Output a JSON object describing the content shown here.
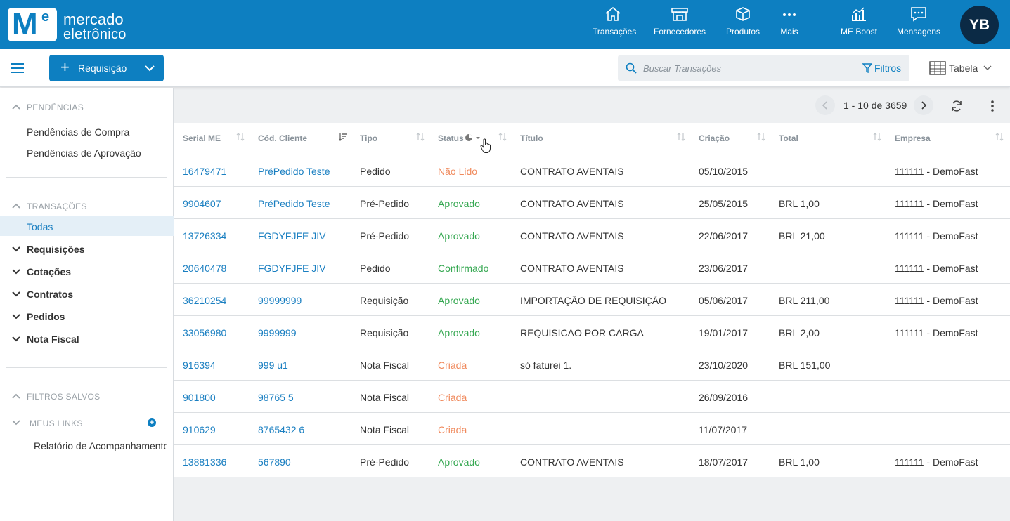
{
  "brand": {
    "mark_m": "M",
    "mark_e": "e",
    "line1": "mercado",
    "line2": "eletrônico"
  },
  "nav": [
    {
      "label": "Transações",
      "icon": "home-icon",
      "active": true
    },
    {
      "label": "Fornecedores",
      "icon": "store-icon"
    },
    {
      "label": "Produtos",
      "icon": "box-icon"
    },
    {
      "label": "Mais",
      "icon": "more-icon"
    },
    {
      "label": "ME Boost",
      "icon": "chart-icon"
    },
    {
      "label": "Mensagens",
      "icon": "message-icon"
    }
  ],
  "user": {
    "initials": "YB"
  },
  "toolbar": {
    "new_button": "Requisição",
    "search_placeholder": "Buscar Transações",
    "filters": "Filtros",
    "view": "Tabela"
  },
  "sidebar": {
    "pendencias_title": "PENDÊNCIAS",
    "pendencias": [
      "Pendências de Compra",
      "Pendências de Aprovação"
    ],
    "transacoes_title": "TRANSAÇÕES",
    "todas": "Todas",
    "groups": [
      "Requisições",
      "Cotações",
      "Contratos",
      "Pedidos",
      "Nota Fiscal"
    ],
    "filtros_title": "FILTROS SALVOS",
    "meus_links_title": "MEUS LINKS",
    "links": [
      "Relatório de Acompanhamento"
    ]
  },
  "pager": {
    "range": "1 - 10 de 3659"
  },
  "table": {
    "headers": [
      "Serial ME",
      "Cód. Cliente",
      "Tipo",
      "Status",
      "Título",
      "Criação",
      "Total",
      "Empresa"
    ],
    "rows": [
      {
        "serial": "16479471",
        "cod": "PréPedido Teste",
        "tipo": "Pedido",
        "status": "Não Lido",
        "status_color": "#f08a5d",
        "titulo": "CONTRATO AVENTAIS",
        "criacao": "05/10/2015",
        "total": "",
        "empresa": "111111 - DemoFast"
      },
      {
        "serial": "9904607",
        "cod": "PréPedido Teste",
        "tipo": "Pré-Pedido",
        "status": "Aprovado",
        "status_color": "#36a852",
        "titulo": "CONTRATO AVENTAIS",
        "criacao": "25/05/2015",
        "total": "BRL 1,00",
        "empresa": "111111 - DemoFast"
      },
      {
        "serial": "13726334",
        "cod": "FGDYFJFE JIV",
        "tipo": "Pré-Pedido",
        "status": "Aprovado",
        "status_color": "#36a852",
        "titulo": "CONTRATO AVENTAIS",
        "criacao": "22/06/2017",
        "total": "BRL 21,00",
        "empresa": "111111 - DemoFast"
      },
      {
        "serial": "20640478",
        "cod": "FGDYFJFE JIV",
        "tipo": "Pedido",
        "status": "Confirmado",
        "status_color": "#36a852",
        "titulo": "CONTRATO AVENTAIS",
        "criacao": "23/06/2017",
        "total": "",
        "empresa": "111111 - DemoFast"
      },
      {
        "serial": "36210254",
        "cod": "99999999",
        "tipo": "Requisição",
        "status": "Aprovado",
        "status_color": "#36a852",
        "titulo": "IMPORTAÇÃO DE REQUISIÇÃO",
        "criacao": "05/06/2017",
        "total": "BRL 211,00",
        "empresa": "111111 - DemoFast"
      },
      {
        "serial": "33056980",
        "cod": "9999999",
        "tipo": "Requisição",
        "status": "Aprovado",
        "status_color": "#36a852",
        "titulo": "REQUISICAO POR CARGA",
        "criacao": "19/01/2017",
        "total": "BRL 2,00",
        "empresa": "111111 - DemoFast"
      },
      {
        "serial": "916394",
        "cod": "999 u1",
        "tipo": "Nota Fiscal",
        "status": "Criada",
        "status_color": "#f08a5d",
        "titulo": "só faturei 1.",
        "criacao": "23/10/2020",
        "total": "BRL 151,00",
        "empresa": ""
      },
      {
        "serial": "901800",
        "cod": "98765 5",
        "tipo": "Nota Fiscal",
        "status": "Criada",
        "status_color": "#f08a5d",
        "titulo": "",
        "criacao": "26/09/2016",
        "total": "",
        "empresa": ""
      },
      {
        "serial": "910629",
        "cod": "8765432 6",
        "tipo": "Nota Fiscal",
        "status": "Criada",
        "status_color": "#f08a5d",
        "titulo": "",
        "criacao": "11/07/2017",
        "total": "",
        "empresa": ""
      },
      {
        "serial": "13881336",
        "cod": "567890",
        "tipo": "Pré-Pedido",
        "status": "Aprovado",
        "status_color": "#36a852",
        "titulo": "CONTRATO AVENTAIS",
        "criacao": "18/07/2017",
        "total": "BRL 1,00",
        "empresa": "111111 - DemoFast"
      }
    ]
  }
}
